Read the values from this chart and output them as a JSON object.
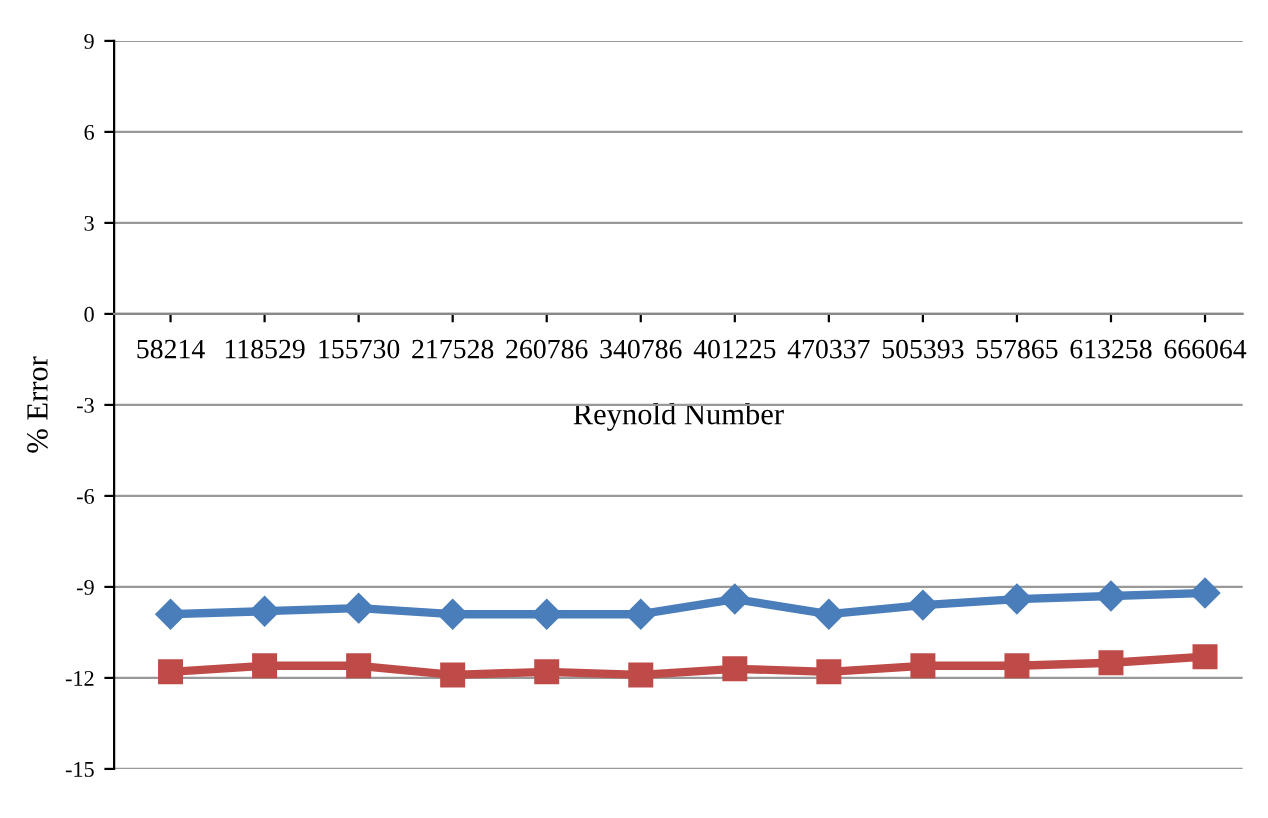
{
  "chart_data": {
    "type": "line",
    "xlabel": "Reynold Number",
    "ylabel": "% Error",
    "categories": [
      "58214",
      "118529",
      "155730",
      "217528",
      "260786",
      "340786",
      "401225",
      "470337",
      "505393",
      "557865",
      "613258",
      "666064"
    ],
    "series": [
      {
        "color": "#4a7ebb",
        "marker": "diamond",
        "values": [
          -9.9,
          -9.8,
          -9.7,
          -9.9,
          -9.9,
          -9.9,
          -9.4,
          -9.9,
          -9.6,
          -9.4,
          -9.3,
          -9.2
        ]
      },
      {
        "color": "#be4b48",
        "marker": "square",
        "values": [
          -11.8,
          -11.6,
          -11.6,
          -11.9,
          -11.8,
          -11.9,
          -11.7,
          -11.8,
          -11.6,
          -11.6,
          -11.5,
          -11.3
        ]
      }
    ],
    "ylim": [
      -15,
      9
    ],
    "yticks": [
      -15,
      -12,
      -9,
      -6,
      -3,
      0,
      3,
      6,
      9
    ],
    "grid": "y"
  }
}
